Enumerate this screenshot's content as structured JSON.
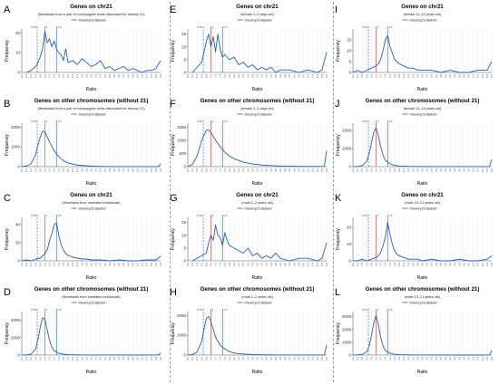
{
  "figure": {
    "x_ticks": [
      "0.0",
      "0.2",
      "0.4",
      "0.6",
      "0.8",
      "1.0",
      "1.2",
      "1.4",
      "1.6",
      "1.8",
      "2.0",
      "2.2",
      "2.4",
      "2.6",
      "2.8",
      "3.0",
      "3.2",
      "3.4",
      "3.6",
      "3.8",
      "4.0",
      "4.2",
      "4.4",
      "4.6",
      "4.8",
      "5.0",
      "5.2",
      "5.4",
      "5.6",
      "5.8",
      "6.0"
    ],
    "ref_lines": [
      {
        "label": "0.67",
        "x": 0.67,
        "style": "dashed",
        "color": "#3b6fb6"
      },
      {
        "label": "1",
        "x": 1.0,
        "style": "solid",
        "color": "#d9534f"
      },
      {
        "label": "1.5",
        "x": 1.5,
        "style": "solid",
        "color": "#3b6fb6"
      }
    ],
    "colors": {
      "series": "#2b5fa8",
      "grid": "#e6e6e6",
      "axis": "#555555"
    }
  },
  "chart_data": [
    {
      "panel_letter": "A",
      "type": "line",
      "title": "Genes on chr21",
      "subtitle": "(fibroblasts from a pair of monozygotic twins discordant for trisomy 21)",
      "legend": "trisomy21/diploid",
      "xlabel": "Ratio",
      "ylabel": "Frequency",
      "yticks": [
        0,
        10,
        20
      ],
      "ylim": [
        0,
        22
      ],
      "xlim": [
        0,
        6
      ],
      "x": [
        0.2,
        0.4,
        0.6,
        0.7,
        0.8,
        0.9,
        1.0,
        1.1,
        1.2,
        1.3,
        1.4,
        1.5,
        1.6,
        1.7,
        1.8,
        1.9,
        2.0,
        2.2,
        2.4,
        2.6,
        2.8,
        3.0,
        3.2,
        3.4,
        3.6,
        3.8,
        4.0,
        4.2,
        4.4,
        4.6,
        4.8,
        5.0,
        5.2,
        5.4,
        5.6,
        5.8,
        6.0
      ],
      "y": [
        0,
        1,
        3,
        5,
        8,
        12,
        21,
        15,
        17,
        13,
        16,
        12,
        10,
        9,
        6,
        12,
        5,
        6,
        4,
        7,
        5,
        3,
        4,
        6,
        2,
        3,
        1,
        2,
        3,
        1,
        2,
        1,
        0,
        1,
        1,
        2,
        6
      ]
    },
    {
      "panel_letter": "B",
      "type": "line",
      "title": "Genes on other chromosomes (without 21)",
      "subtitle": "(fibroblasts from a pair of monozygotic twins discordant for trisomy 21)",
      "legend": "trisomy21/diploid",
      "xlabel": "Ratio",
      "ylabel": "Frequency",
      "yticks": [
        0,
        1000,
        2000
      ],
      "ylim": [
        0,
        2200
      ],
      "xlim": [
        0,
        6
      ],
      "x": [
        0.0,
        0.2,
        0.4,
        0.6,
        0.7,
        0.8,
        0.9,
        1.0,
        1.1,
        1.2,
        1.4,
        1.6,
        1.8,
        2.0,
        2.4,
        2.8,
        3.2,
        3.6,
        4.0,
        4.8,
        5.6,
        5.9,
        6.0
      ],
      "y": [
        0,
        30,
        150,
        600,
        1100,
        1500,
        1800,
        1750,
        1500,
        1250,
        800,
        500,
        300,
        180,
        80,
        40,
        20,
        10,
        5,
        2,
        1,
        2,
        150
      ]
    },
    {
      "panel_letter": "C",
      "type": "line",
      "title": "Genes on chr21",
      "subtitle": "(fibroblasts from unrelated individuals)",
      "legend": "trisomy21/diploid",
      "xlabel": "Ratio",
      "ylabel": "Frequency",
      "yticks": [
        0,
        20,
        40
      ],
      "ylim": [
        0,
        48
      ],
      "xlim": [
        0,
        6
      ],
      "x": [
        0.0,
        0.2,
        0.4,
        0.6,
        0.8,
        1.0,
        1.1,
        1.2,
        1.3,
        1.4,
        1.5,
        1.6,
        1.7,
        1.8,
        1.9,
        2.0,
        2.2,
        2.4,
        2.6,
        2.8,
        3.0,
        3.4,
        3.8,
        4.2,
        4.6,
        5.0,
        5.4,
        5.8,
        6.0
      ],
      "y": [
        0,
        1,
        0,
        2,
        3,
        8,
        12,
        22,
        30,
        40,
        42,
        28,
        18,
        12,
        8,
        6,
        4,
        3,
        2,
        2,
        1,
        1,
        0,
        1,
        0,
        0,
        1,
        1,
        5
      ]
    },
    {
      "panel_letter": "D",
      "type": "line",
      "title": "Genes on other chromosomes (without 21)",
      "subtitle": "(fibroblasts from unrelated individuals)",
      "legend": "trisomy21/diploid",
      "xlabel": "Ratio",
      "ylabel": "Frequency",
      "yticks": [
        0,
        2000,
        4000
      ],
      "ylim": [
        0,
        5000
      ],
      "xlim": [
        0,
        6
      ],
      "x": [
        0.0,
        0.2,
        0.4,
        0.6,
        0.7,
        0.8,
        0.9,
        1.0,
        1.1,
        1.2,
        1.3,
        1.4,
        1.6,
        1.8,
        2.0,
        2.4,
        2.8,
        3.2,
        4.0,
        5.0,
        5.9,
        6.0
      ],
      "y": [
        0,
        20,
        100,
        700,
        1800,
        3200,
        4300,
        4100,
        2900,
        1700,
        900,
        500,
        200,
        100,
        50,
        20,
        10,
        5,
        2,
        1,
        2,
        250
      ]
    },
    {
      "panel_letter": "E",
      "type": "line",
      "title": "Genes on chr21",
      "subtitle": "(female 2–3 days old)",
      "legend": "trisomy21/diploid",
      "xlabel": "Ratio",
      "ylabel": "Frequency",
      "yticks": [
        0,
        5,
        10,
        15
      ],
      "ylim": [
        0,
        17
      ],
      "xlim": [
        0,
        6
      ],
      "x": [
        0.2,
        0.4,
        0.6,
        0.7,
        0.8,
        0.9,
        1.0,
        1.1,
        1.2,
        1.3,
        1.4,
        1.5,
        1.6,
        1.8,
        2.0,
        2.2,
        2.4,
        2.6,
        2.8,
        3.0,
        3.2,
        3.4,
        3.6,
        3.8,
        4.0,
        4.4,
        4.8,
        5.2,
        5.6,
        5.8,
        6.0
      ],
      "y": [
        0,
        2,
        4,
        8,
        12,
        15,
        10,
        14,
        8,
        15,
        9,
        6,
        7,
        5,
        6,
        3,
        4,
        2,
        3,
        1,
        2,
        1,
        2,
        0,
        1,
        1,
        0,
        1,
        0,
        1,
        8
      ]
    },
    {
      "panel_letter": "F",
      "type": "line",
      "title": "Genes on other chromosomes (without 21)",
      "subtitle": "(female 2–3 days old)",
      "legend": "trisomy21/diploid",
      "xlabel": "Ratio",
      "ylabel": "Frequency",
      "yticks": [
        0,
        500,
        1000,
        1500
      ],
      "ylim": [
        0,
        1650
      ],
      "xlim": [
        0,
        6
      ],
      "x": [
        0.0,
        0.2,
        0.4,
        0.6,
        0.8,
        0.9,
        1.0,
        1.1,
        1.2,
        1.4,
        1.6,
        1.8,
        2.0,
        2.4,
        2.8,
        3.2,
        3.6,
        4.0,
        4.8,
        5.6,
        5.9,
        6.0
      ],
      "y": [
        0,
        80,
        400,
        1000,
        1380,
        1400,
        1300,
        1150,
        1000,
        750,
        550,
        400,
        300,
        170,
        100,
        60,
        40,
        25,
        10,
        5,
        10,
        600
      ]
    },
    {
      "panel_letter": "G",
      "type": "line",
      "title": "Genes on chr21",
      "subtitle": "(male 1–2 years old)",
      "legend": "trisomy21/diploid",
      "xlabel": "Ratio",
      "ylabel": "Frequency",
      "yticks": [
        0,
        5,
        10,
        15
      ],
      "ylim": [
        0,
        17
      ],
      "xlim": [
        0,
        6
      ],
      "x": [
        0.2,
        0.4,
        0.6,
        0.8,
        0.9,
        1.0,
        1.1,
        1.2,
        1.3,
        1.4,
        1.5,
        1.6,
        1.7,
        1.8,
        2.0,
        2.2,
        2.4,
        2.6,
        2.8,
        3.0,
        3.2,
        3.4,
        3.6,
        3.8,
        4.0,
        4.4,
        4.8,
        5.2,
        5.6,
        5.8,
        6.0
      ],
      "y": [
        0,
        1,
        2,
        3,
        7,
        10,
        8,
        14,
        10,
        9,
        6,
        11,
        8,
        6,
        5,
        4,
        3,
        5,
        2,
        3,
        1,
        2,
        1,
        3,
        1,
        0,
        1,
        1,
        0,
        1,
        7
      ]
    },
    {
      "panel_letter": "H",
      "type": "line",
      "title": "Genes on other chromosomes (without 21)",
      "subtitle": "(male 1–2 years old)",
      "legend": "trisomy21/diploid",
      "xlabel": "Ratio",
      "ylabel": "Frequency",
      "yticks": [
        0,
        1000,
        2000
      ],
      "ylim": [
        0,
        2200
      ],
      "xlim": [
        0,
        6
      ],
      "x": [
        0.0,
        0.2,
        0.4,
        0.6,
        0.7,
        0.8,
        0.9,
        1.0,
        1.1,
        1.2,
        1.4,
        1.6,
        1.8,
        2.0,
        2.4,
        2.8,
        3.2,
        4.0,
        4.8,
        5.6,
        5.9,
        6.0
      ],
      "y": [
        0,
        20,
        150,
        700,
        1300,
        1850,
        1950,
        1700,
        1300,
        900,
        500,
        300,
        180,
        100,
        50,
        25,
        12,
        5,
        2,
        1,
        2,
        500
      ]
    },
    {
      "panel_letter": "I",
      "type": "line",
      "title": "Genes on chr21",
      "subtitle": "(female 11–19 years old)",
      "legend": "trisomy21/diploid",
      "xlabel": "Ratio",
      "ylabel": "Frequency",
      "yticks": [
        0,
        5,
        10,
        15
      ],
      "ylim": [
        0,
        20
      ],
      "xlim": [
        0,
        6
      ],
      "x": [
        0.0,
        0.2,
        0.4,
        0.6,
        0.8,
        1.0,
        1.1,
        1.2,
        1.3,
        1.4,
        1.5,
        1.6,
        1.7,
        1.8,
        1.9,
        2.0,
        2.2,
        2.4,
        2.6,
        2.8,
        3.0,
        3.4,
        3.8,
        4.2,
        4.6,
        5.0,
        5.4,
        5.8,
        6.0
      ],
      "y": [
        0,
        1,
        0,
        1,
        2,
        3,
        4,
        6,
        10,
        15,
        17,
        12,
        9,
        6,
        5,
        4,
        3,
        2,
        2,
        1,
        1,
        1,
        0,
        1,
        0,
        0,
        1,
        1,
        5
      ]
    },
    {
      "panel_letter": "J",
      "type": "line",
      "title": "Genes on other chromosomes (without 21)",
      "subtitle": "(female 11–19 years old)",
      "legend": "trisomy21/diploid",
      "xlabel": "Ratio",
      "ylabel": "Frequency",
      "yticks": [
        0,
        1000,
        2000
      ],
      "ylim": [
        0,
        2400
      ],
      "xlim": [
        0,
        6
      ],
      "x": [
        0.0,
        0.2,
        0.4,
        0.6,
        0.7,
        0.8,
        0.9,
        1.0,
        1.1,
        1.2,
        1.3,
        1.4,
        1.6,
        1.8,
        2.0,
        2.4,
        2.8,
        3.2,
        4.0,
        4.8,
        5.6,
        5.9,
        6.0
      ],
      "y": [
        0,
        10,
        60,
        300,
        700,
        1300,
        1900,
        2150,
        1700,
        1100,
        650,
        350,
        150,
        70,
        35,
        15,
        8,
        4,
        2,
        1,
        1,
        2,
        400
      ]
    },
    {
      "panel_letter": "K",
      "type": "line",
      "title": "Genes on chr21",
      "subtitle": "(male 19–21 years old)",
      "legend": "trisomy21/diploid",
      "xlabel": "Ratio",
      "ylabel": "Frequency",
      "yticks": [
        0,
        10,
        20
      ],
      "ylim": [
        0,
        26
      ],
      "xlim": [
        0,
        6
      ],
      "x": [
        0.0,
        0.2,
        0.4,
        0.6,
        0.8,
        1.0,
        1.1,
        1.2,
        1.3,
        1.4,
        1.5,
        1.6,
        1.7,
        1.8,
        1.9,
        2.0,
        2.2,
        2.4,
        2.6,
        2.8,
        3.0,
        3.4,
        3.8,
        4.2,
        4.6,
        5.0,
        5.4,
        5.8,
        6.0
      ],
      "y": [
        0,
        0,
        1,
        0,
        1,
        2,
        3,
        5,
        9,
        14,
        23,
        16,
        10,
        6,
        4,
        3,
        2,
        1,
        1,
        1,
        0,
        1,
        0,
        0,
        1,
        0,
        0,
        1,
        3
      ]
    },
    {
      "panel_letter": "L",
      "type": "line",
      "title": "Genes on other chromosomes (without 21)",
      "subtitle": "(male 19–21 years old)",
      "legend": "trisomy21/diploid",
      "xlabel": "Ratio",
      "ylabel": "Frequency",
      "yticks": [
        0,
        1000,
        2000,
        3000
      ],
      "ylim": [
        0,
        3400
      ],
      "xlim": [
        0,
        6
      ],
      "x": [
        0.0,
        0.2,
        0.4,
        0.6,
        0.7,
        0.8,
        0.9,
        1.0,
        1.1,
        1.2,
        1.3,
        1.4,
        1.6,
        1.8,
        2.0,
        2.4,
        2.8,
        3.2,
        4.0,
        4.8,
        5.6,
        5.9,
        6.0
      ],
      "y": [
        0,
        10,
        50,
        250,
        700,
        1500,
        2500,
        3100,
        2400,
        1400,
        700,
        350,
        150,
        60,
        30,
        12,
        6,
        3,
        1,
        1,
        1,
        2,
        350
      ]
    }
  ]
}
